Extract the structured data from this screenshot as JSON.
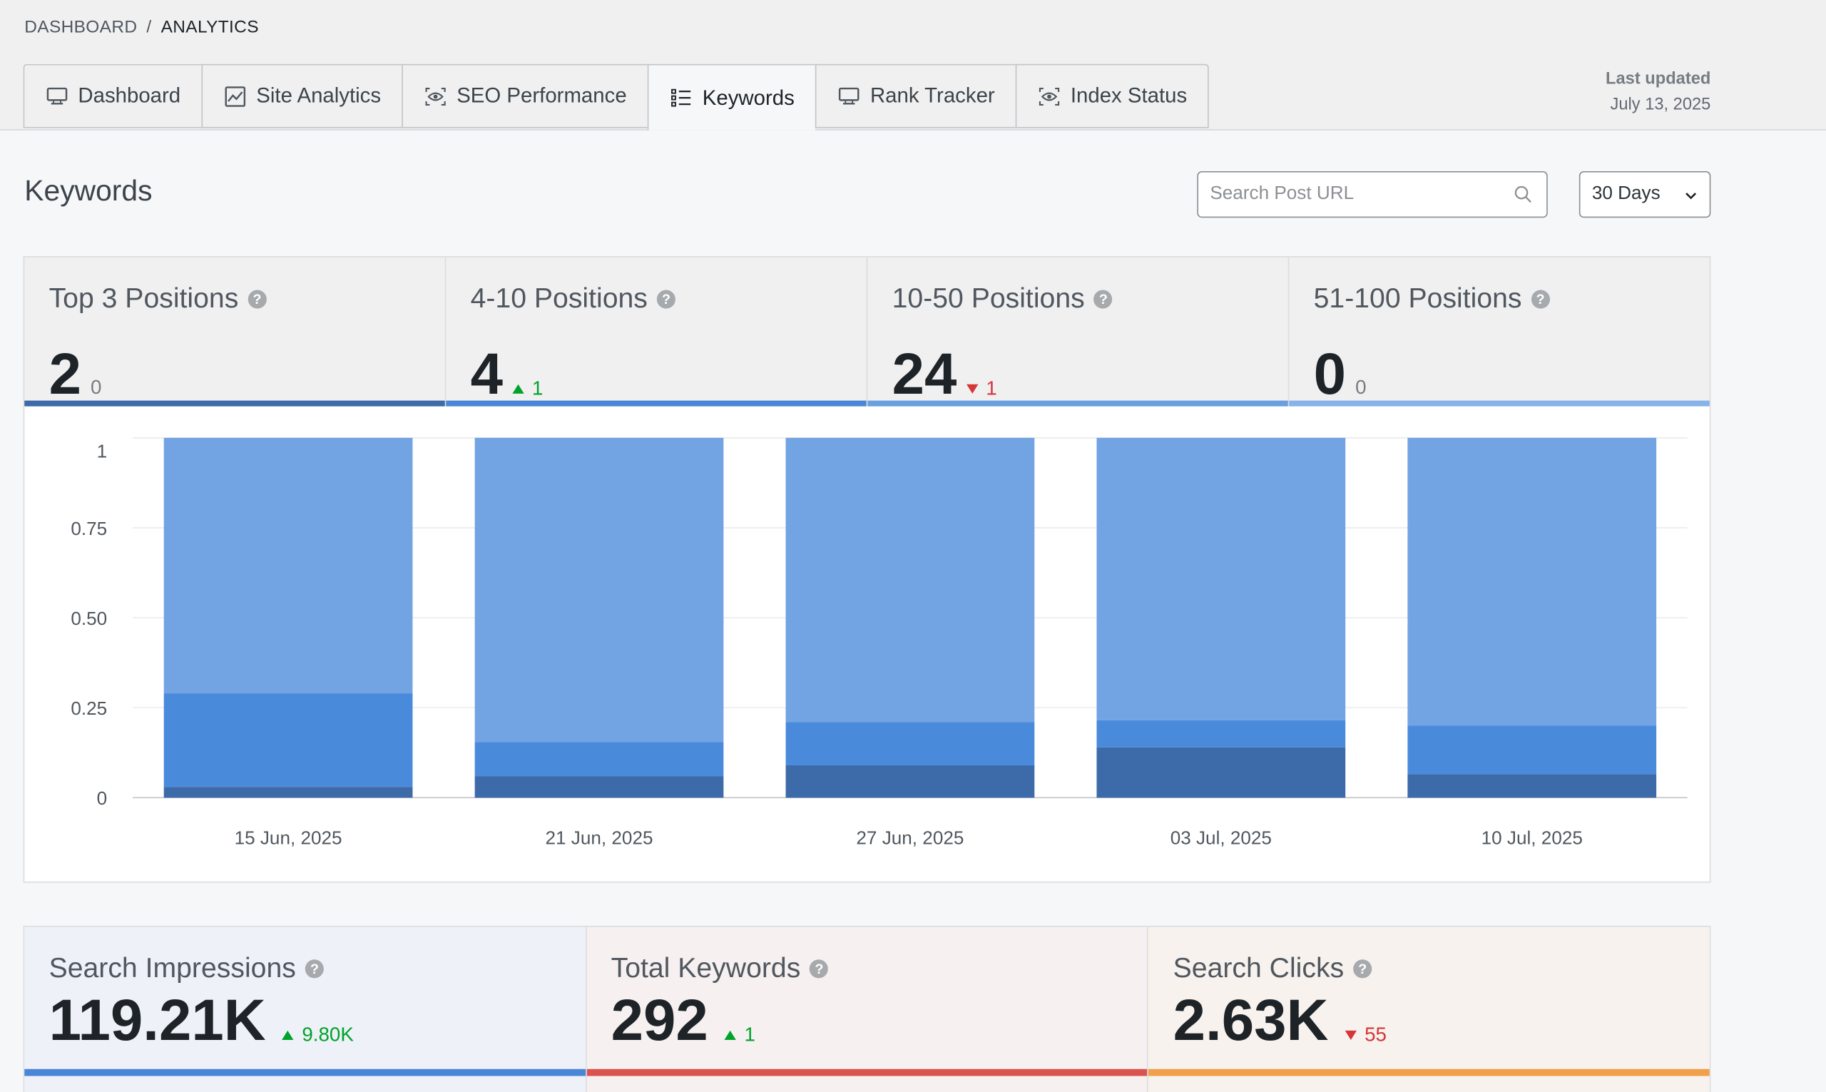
{
  "breadcrumb": {
    "parent": "Dashboard",
    "separator": "/",
    "current": "Analytics"
  },
  "tabs": [
    {
      "label": "Dashboard",
      "icon": "monitor-icon",
      "active": false
    },
    {
      "label": "Site Analytics",
      "icon": "line-chart-icon",
      "active": false
    },
    {
      "label": "SEO Performance",
      "icon": "eye-icon",
      "active": false
    },
    {
      "label": "Keywords",
      "icon": "list-icon",
      "active": true
    },
    {
      "label": "Rank Tracker",
      "icon": "monitor-icon",
      "active": false
    },
    {
      "label": "Index Status",
      "icon": "eye-icon",
      "active": false
    }
  ],
  "last_updated": {
    "label": "Last updated",
    "date": "July 13, 2025"
  },
  "section": {
    "title": "Keywords"
  },
  "search": {
    "placeholder": "Search Post URL",
    "value": ""
  },
  "range_select": {
    "selected": "30 Days"
  },
  "position_cards": [
    {
      "title": "Top 3 Positions",
      "value": "2",
      "delta": "0",
      "trend": "flat",
      "color": "#3d6aa8"
    },
    {
      "title": "4-10 Positions",
      "value": "4",
      "delta": "1",
      "trend": "up",
      "color": "#4a86d8"
    },
    {
      "title": "10-50 Positions",
      "value": "24",
      "delta": "1",
      "trend": "down",
      "color": "#6a9fe0"
    },
    {
      "title": "51-100 Positions",
      "value": "0",
      "delta": "0",
      "trend": "flat",
      "color": "#88b2ea"
    }
  ],
  "chart_data": {
    "type": "bar",
    "stacked": true,
    "categories": [
      "15 Jun, 2025",
      "21 Jun, 2025",
      "27 Jun, 2025",
      "03 Jul, 2025",
      "10 Jul, 2025"
    ],
    "y_ticks": [
      "0",
      "0.25",
      "0.50",
      "0.75",
      "1"
    ],
    "ylim": [
      0,
      1
    ],
    "grid": true,
    "series": [
      {
        "values": [
          0.03,
          0.06,
          0.09,
          0.14,
          0.065
        ],
        "color": "#3d6aa8"
      },
      {
        "values": [
          0.26,
          0.095,
          0.12,
          0.075,
          0.135
        ],
        "color": "#4a8adb"
      },
      {
        "values": [
          0.71,
          0.845,
          0.79,
          0.785,
          0.8
        ],
        "color": "#72a3e3"
      }
    ]
  },
  "stat_cards": [
    {
      "title": "Search Impressions",
      "value": "119.21K",
      "delta": "9.80K",
      "trend": "up",
      "bg": "#eef1f8",
      "color": "#4a86d8"
    },
    {
      "title": "Total Keywords",
      "value": "292",
      "delta": "1",
      "trend": "up",
      "bg": "#f6f0f0",
      "color": "#d9534f"
    },
    {
      "title": "Search Clicks",
      "value": "2.63K",
      "delta": "55",
      "trend": "down",
      "bg": "#f7f2ee",
      "color": "#f0a04b"
    }
  ]
}
